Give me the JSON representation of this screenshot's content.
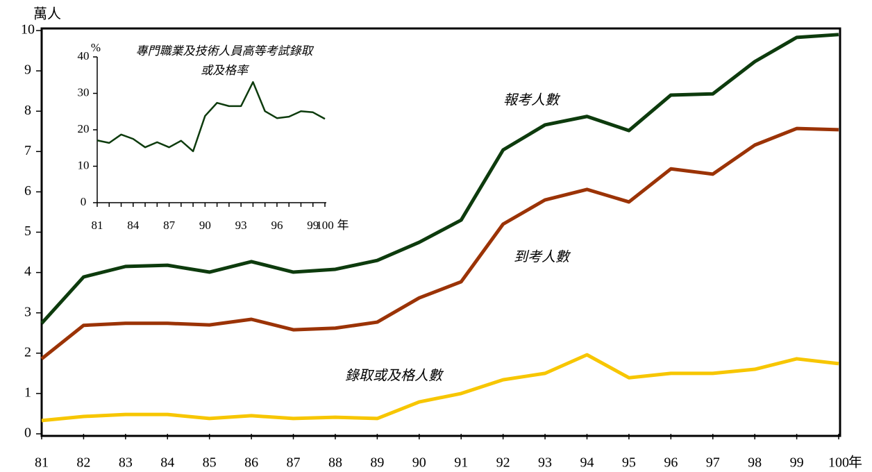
{
  "chart_data": [
    {
      "type": "line",
      "y_label": "萬人",
      "x_unit": "年",
      "categories": [
        "81",
        "82",
        "83",
        "84",
        "85",
        "86",
        "87",
        "88",
        "89",
        "90",
        "91",
        "92",
        "93",
        "94",
        "95",
        "96",
        "97",
        "98",
        "99",
        "100"
      ],
      "ylim": [
        0,
        10
      ],
      "yticks": [
        0,
        1,
        2,
        3,
        4,
        5,
        6,
        7,
        8,
        9,
        10
      ],
      "series": [
        {
          "name": "報考人數",
          "color": "#0d3b0d",
          "values": [
            2.74,
            3.89,
            4.15,
            4.18,
            4.01,
            4.27,
            4.01,
            4.08,
            4.3,
            4.75,
            5.3,
            7.04,
            7.66,
            7.87,
            7.52,
            8.4,
            8.43,
            9.23,
            9.83,
            9.9
          ]
        },
        {
          "name": "到考人數",
          "color": "#9b3306",
          "values": [
            1.86,
            2.69,
            2.74,
            2.74,
            2.7,
            2.84,
            2.58,
            2.62,
            2.77,
            3.37,
            3.77,
            5.2,
            5.8,
            6.06,
            5.75,
            6.57,
            6.44,
            7.16,
            7.57,
            7.54
          ]
        },
        {
          "name": "錄取或及格人數",
          "color": "#f7c600",
          "values": [
            0.33,
            0.43,
            0.48,
            0.48,
            0.38,
            0.45,
            0.38,
            0.41,
            0.38,
            0.79,
            1.0,
            1.34,
            1.5,
            1.96,
            1.39,
            1.5,
            1.5,
            1.6,
            1.86,
            1.74
          ]
        }
      ]
    },
    {
      "type": "line",
      "title": [
        "專門職業及技術人員高等考試錄取",
        "或及格率"
      ],
      "y_label": "%",
      "x_unit": "年",
      "categories": [
        "81",
        null,
        null,
        "84",
        null,
        null,
        "87",
        null,
        null,
        "90",
        null,
        null,
        "93",
        null,
        null,
        "96",
        null,
        null,
        "99",
        "100"
      ],
      "ylim": [
        0,
        40
      ],
      "yticks": [
        0,
        10,
        20,
        30,
        40
      ],
      "color": "#0d3b0d",
      "values": [
        17.1,
        16.4,
        18.7,
        17.5,
        15.2,
        16.6,
        15.2,
        17.0,
        14.1,
        23.8,
        27.4,
        26.5,
        26.5,
        33.1,
        25.1,
        23.2,
        23.6,
        25.1,
        24.8,
        23.0
      ]
    }
  ]
}
